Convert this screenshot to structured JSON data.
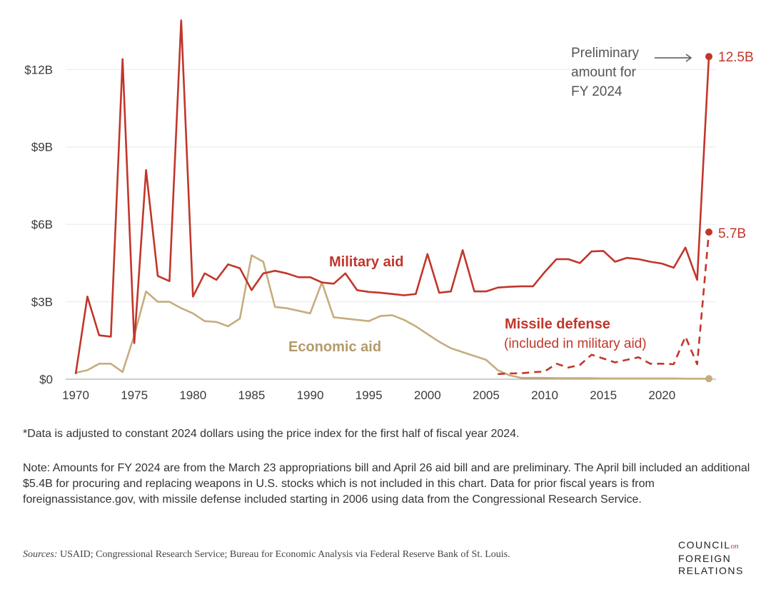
{
  "chart_data": {
    "type": "line",
    "x_range": [
      1970,
      2024
    ],
    "ylim": [
      0,
      14
    ],
    "y_ticks": [
      {
        "value": 0,
        "label": "$0"
      },
      {
        "value": 3,
        "label": "$3B"
      },
      {
        "value": 6,
        "label": "$6B"
      },
      {
        "value": 9,
        "label": "$9B"
      },
      {
        "value": 12,
        "label": "$12B"
      }
    ],
    "x_ticks": [
      1970,
      1975,
      1980,
      1985,
      1990,
      1995,
      2000,
      2005,
      2010,
      2015,
      2020
    ],
    "series": [
      {
        "name": "Military aid",
        "color": "#c1362b",
        "style": "solid",
        "x": [
          1970,
          1971,
          1972,
          1973,
          1974,
          1975,
          1976,
          1977,
          1978,
          1979,
          1980,
          1981,
          1982,
          1983,
          1984,
          1985,
          1986,
          1987,
          1988,
          1989,
          1990,
          1991,
          1992,
          1993,
          1994,
          1995,
          1996,
          1997,
          1998,
          1999,
          2000,
          2001,
          2002,
          2003,
          2004,
          2005,
          2006,
          2007,
          2008,
          2009,
          2010,
          2011,
          2012,
          2013,
          2014,
          2015,
          2016,
          2017,
          2018,
          2019,
          2020,
          2021,
          2022,
          2023,
          2024
        ],
        "values": [
          0.2,
          3.2,
          1.7,
          1.65,
          12.4,
          1.4,
          8.1,
          4.0,
          3.8,
          13.9,
          3.2,
          4.1,
          3.85,
          4.45,
          4.3,
          3.45,
          4.1,
          4.2,
          4.1,
          3.95,
          3.95,
          3.75,
          3.7,
          4.1,
          3.45,
          3.38,
          3.35,
          3.3,
          3.25,
          3.3,
          4.85,
          3.35,
          3.4,
          5.0,
          3.4,
          3.4,
          3.55,
          3.58,
          3.6,
          3.6,
          4.15,
          4.65,
          4.65,
          4.5,
          4.95,
          4.97,
          4.55,
          4.7,
          4.65,
          4.55,
          4.48,
          4.32,
          5.1,
          3.85,
          12.5
        ]
      },
      {
        "name": "Economic aid",
        "color": "#c5ad7e",
        "style": "solid",
        "x": [
          1970,
          1971,
          1972,
          1973,
          1974,
          1975,
          1976,
          1977,
          1978,
          1979,
          1980,
          1981,
          1982,
          1983,
          1984,
          1985,
          1986,
          1987,
          1988,
          1989,
          1990,
          1991,
          1992,
          1993,
          1994,
          1995,
          1996,
          1997,
          1998,
          1999,
          2000,
          2001,
          2002,
          2003,
          2004,
          2005,
          2006,
          2007,
          2008,
          2009,
          2010,
          2011,
          2012,
          2013,
          2014,
          2015,
          2016,
          2017,
          2018,
          2019,
          2020,
          2021,
          2022,
          2023,
          2024
        ],
        "values": [
          0.25,
          0.35,
          0.6,
          0.6,
          0.28,
          1.7,
          3.4,
          3.0,
          3.0,
          2.75,
          2.55,
          2.25,
          2.22,
          2.05,
          2.35,
          4.8,
          4.55,
          2.8,
          2.75,
          2.65,
          2.55,
          3.75,
          2.4,
          2.35,
          2.3,
          2.25,
          2.45,
          2.48,
          2.3,
          2.05,
          1.75,
          1.45,
          1.2,
          1.05,
          0.9,
          0.75,
          0.35,
          0.15,
          0.05,
          0.05,
          0.05,
          0.04,
          0.04,
          0.04,
          0.04,
          0.03,
          0.03,
          0.03,
          0.03,
          0.03,
          0.03,
          0.03,
          0.02,
          0.02,
          0.02
        ]
      },
      {
        "name": "Missile defense",
        "color": "#c1362b",
        "style": "dashed",
        "x": [
          2006,
          2007,
          2008,
          2009,
          2010,
          2011,
          2012,
          2013,
          2014,
          2015,
          2016,
          2017,
          2018,
          2019,
          2020,
          2021,
          2022,
          2023,
          2024
        ],
        "values": [
          0.2,
          0.22,
          0.23,
          0.27,
          0.3,
          0.6,
          0.45,
          0.55,
          0.95,
          0.8,
          0.65,
          0.75,
          0.85,
          0.6,
          0.6,
          0.58,
          1.65,
          0.58,
          5.7
        ]
      }
    ],
    "labels": {
      "military": "Military aid",
      "economic": "Economic aid",
      "missile_line1": "Missile defense",
      "missile_line2": "(included in military aid)",
      "val_military_2024": "12.5B",
      "val_missile_2024": "5.7B",
      "prelim_line1": "Preliminary",
      "prelim_line2": "amount for",
      "prelim_line3": "FY 2024"
    }
  },
  "footnote": "*Data is adjusted to constant 2024 dollars using the price index for the first half of fiscal year 2024.",
  "note": "Note: Amounts for FY 2024 are from the March 23 appropriations bill and April 26 aid bill and are preliminary. The April bill included an additional $5.4B for procuring and replacing weapons in U.S. stocks which is not included in this chart. Data for prior fiscal years is from foreignassistance.gov, with missile defense included starting in 2006 using data from the Congressional Research Service.",
  "sources_label": "Sources:",
  "sources_text": " USAID; Congressional Research Service; Bureau for Economic Analysis via Federal Reserve Bank of St. Louis.",
  "logo": {
    "line1": "COUNCIL",
    "on": "on",
    "line2": "FOREIGN",
    "line3": "RELATIONS"
  }
}
